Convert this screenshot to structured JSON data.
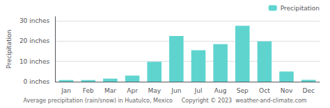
{
  "chart_data": {
    "type": "bar",
    "title": "Average precipitation (rain/snow) in Huatulco, Mexico     Copyright © 2023  weather-and-climate.com",
    "ylabel": "Precipitation",
    "categories": [
      "Jan",
      "Feb",
      "Mar",
      "Apr",
      "May",
      "Jun",
      "Jul",
      "Aug",
      "Sep",
      "Oct",
      "Nov",
      "Dec"
    ],
    "series": [
      {
        "name": "Precipitation",
        "color": "#5fd4cf",
        "values": [
          0.8,
          0.8,
          1.5,
          3.0,
          9.8,
          22.5,
          15.5,
          18.5,
          27.5,
          19.8,
          5.0,
          0.9
        ]
      }
    ],
    "ylim": [
      0,
      32
    ],
    "yticks": [
      {
        "value": 0,
        "label": "0 inches"
      },
      {
        "value": 10,
        "label": "10 inches"
      },
      {
        "value": 20,
        "label": "20 inches"
      },
      {
        "value": 30,
        "label": "30 inches"
      }
    ],
    "grid": true,
    "legend": "upper right"
  }
}
